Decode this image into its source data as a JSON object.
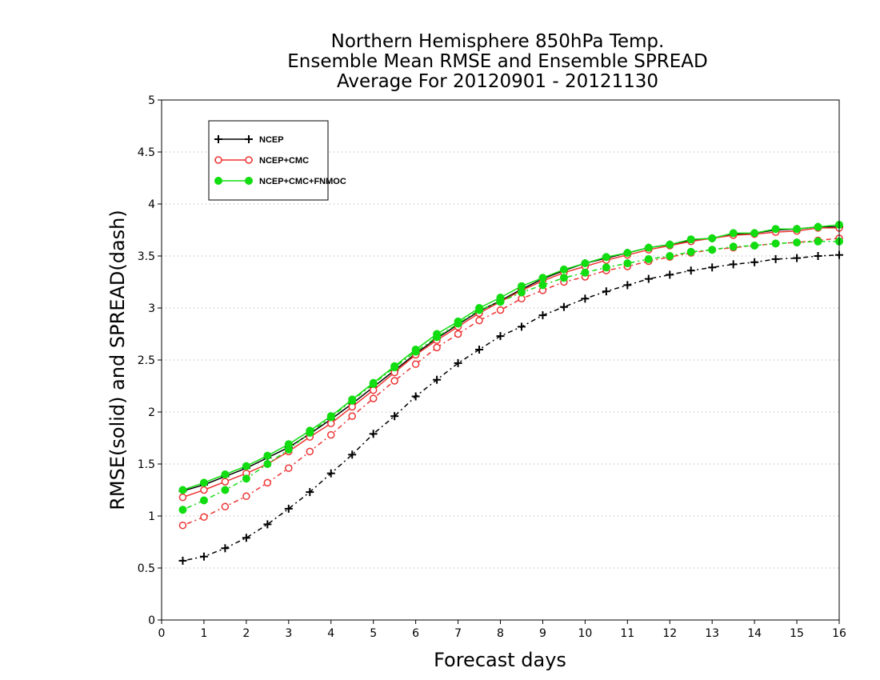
{
  "chart_data": {
    "type": "line",
    "title_lines": [
      "Northern Hemisphere 850hPa Temp.",
      "Ensemble Mean RMSE and Ensemble SPREAD",
      "Average For 20120901 - 20121130"
    ],
    "xlabel": "Forecast days",
    "ylabel": "RMSE(solid) and SPREAD(dash)",
    "xlim": [
      0,
      16
    ],
    "ylim": [
      0,
      5
    ],
    "x_ticks": [
      "0",
      "1",
      "2",
      "3",
      "4",
      "5",
      "6",
      "7",
      "8",
      "9",
      "10",
      "11",
      "12",
      "13",
      "14",
      "15",
      "16"
    ],
    "y_ticks": [
      "0",
      "0.5",
      "1",
      "1.5",
      "2",
      "2.5",
      "3",
      "3.5",
      "4",
      "4.5",
      "5"
    ],
    "grid": "horizontal-dotted",
    "legend_position": "top-left",
    "x": [
      0.5,
      1,
      1.5,
      2,
      2.5,
      3,
      3.5,
      4,
      4.5,
      5,
      5.5,
      6,
      6.5,
      7,
      7.5,
      8,
      8.5,
      9,
      9.5,
      10,
      10.5,
      11,
      11.5,
      12,
      12.5,
      13,
      13.5,
      14,
      14.5,
      15,
      15.5,
      16
    ],
    "series": [
      {
        "name": "NCEP",
        "color": "#000000",
        "marker": "plus",
        "rmse": [
          1.24,
          1.3,
          1.38,
          1.46,
          1.56,
          1.66,
          1.79,
          1.93,
          2.08,
          2.24,
          2.4,
          2.56,
          2.71,
          2.84,
          2.97,
          3.07,
          3.18,
          3.28,
          3.36,
          3.43,
          3.48,
          3.53,
          3.58,
          3.61,
          3.65,
          3.67,
          3.71,
          3.72,
          3.75,
          3.76,
          3.78,
          3.78
        ],
        "spread": [
          0.57,
          0.61,
          0.69,
          0.79,
          0.92,
          1.07,
          1.23,
          1.41,
          1.59,
          1.79,
          1.96,
          2.15,
          2.31,
          2.47,
          2.6,
          2.73,
          2.82,
          2.93,
          3.01,
          3.09,
          3.16,
          3.22,
          3.28,
          3.32,
          3.36,
          3.39,
          3.42,
          3.44,
          3.47,
          3.48,
          3.5,
          3.51
        ]
      },
      {
        "name": "NCEP+CMC",
        "color": "#ee3333",
        "marker": "open-circle",
        "rmse": [
          1.18,
          1.25,
          1.33,
          1.41,
          1.5,
          1.62,
          1.76,
          1.89,
          2.05,
          2.21,
          2.38,
          2.55,
          2.69,
          2.82,
          2.95,
          3.06,
          3.17,
          3.26,
          3.34,
          3.4,
          3.46,
          3.51,
          3.56,
          3.6,
          3.64,
          3.67,
          3.7,
          3.71,
          3.73,
          3.74,
          3.77,
          3.77
        ],
        "spread": [
          0.91,
          0.99,
          1.09,
          1.19,
          1.32,
          1.46,
          1.62,
          1.78,
          1.96,
          2.13,
          2.3,
          2.46,
          2.62,
          2.75,
          2.88,
          2.98,
          3.09,
          3.17,
          3.25,
          3.3,
          3.36,
          3.4,
          3.45,
          3.49,
          3.53,
          3.56,
          3.58,
          3.6,
          3.62,
          3.63,
          3.65,
          3.67
        ]
      },
      {
        "name": "NCEP+CMC+FNMOC",
        "color": "#11dd11",
        "marker": "filled-circle",
        "rmse": [
          1.25,
          1.32,
          1.4,
          1.48,
          1.58,
          1.69,
          1.82,
          1.96,
          2.12,
          2.28,
          2.44,
          2.6,
          2.75,
          2.87,
          3.0,
          3.1,
          3.21,
          3.29,
          3.37,
          3.43,
          3.49,
          3.53,
          3.58,
          3.61,
          3.66,
          3.67,
          3.72,
          3.72,
          3.76,
          3.76,
          3.78,
          3.8
        ],
        "spread": [
          1.06,
          1.15,
          1.25,
          1.36,
          1.5,
          1.64,
          1.8,
          1.95,
          2.11,
          2.27,
          2.43,
          2.58,
          2.72,
          2.85,
          2.98,
          3.06,
          3.15,
          3.22,
          3.29,
          3.34,
          3.39,
          3.43,
          3.47,
          3.5,
          3.54,
          3.56,
          3.59,
          3.6,
          3.62,
          3.63,
          3.64,
          3.64
        ]
      }
    ]
  }
}
